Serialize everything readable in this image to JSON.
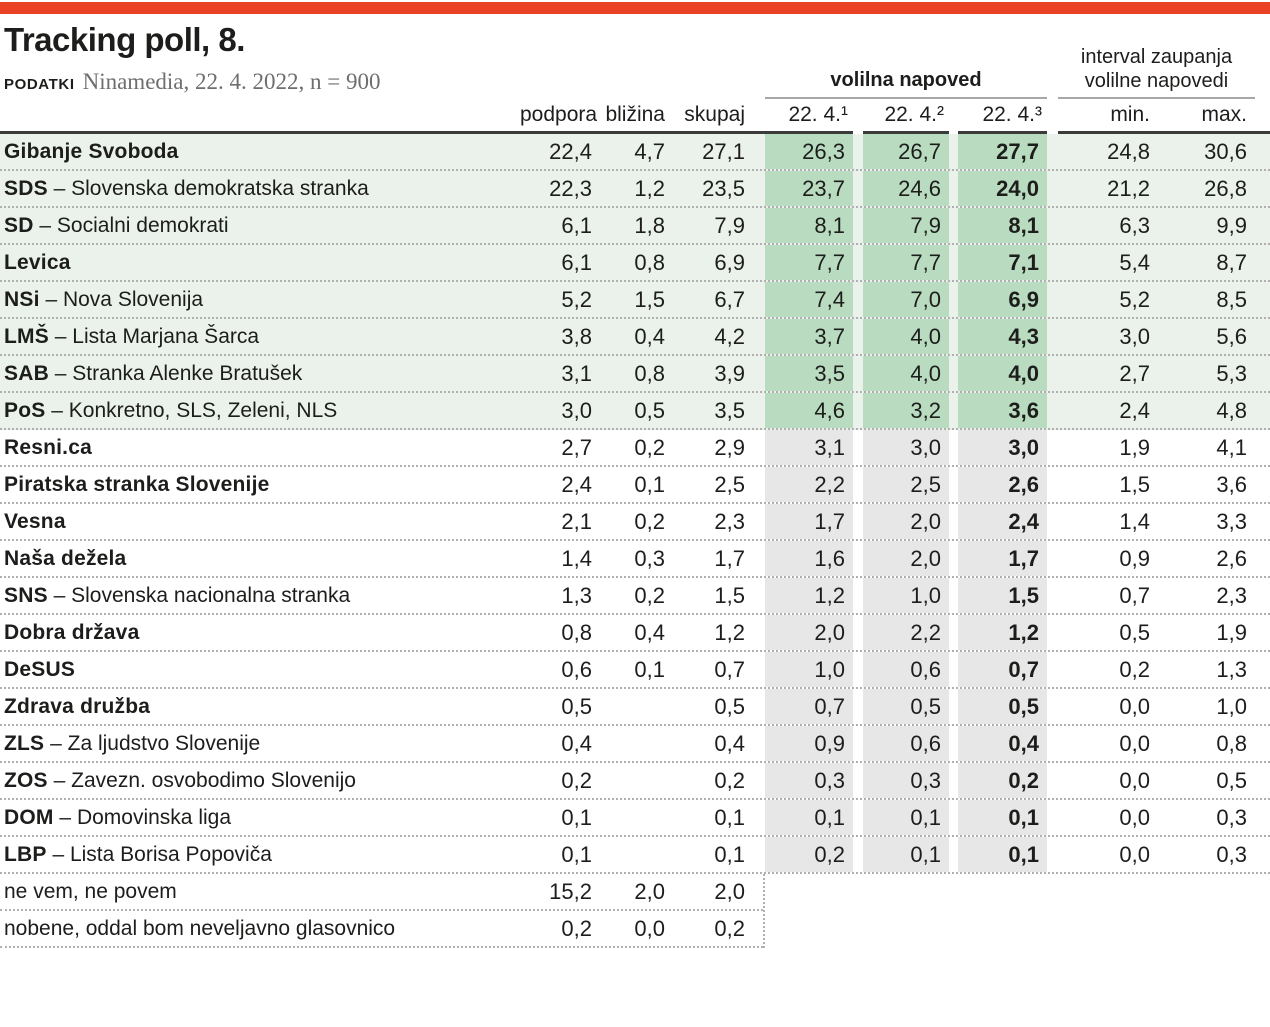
{
  "colors": {
    "accent-red": "#ea4224",
    "row-green": "#eaf2eb",
    "band-green": "#b9dcc1",
    "band-gray": "#e7e7e7"
  },
  "chart_data": {
    "type": "table",
    "title": "Tracking poll, 8.",
    "source_label": "PODATKI",
    "source_text": "Ninamedia, 22. 4. 2022, n = 900",
    "group_headers": {
      "napoved": "volilna napoved",
      "interval_line1": "interval zaupanja",
      "interval_line2": "volilne napovedi"
    },
    "columns": {
      "podpora": "podpora",
      "blizina": "bližina",
      "skupaj": "skupaj",
      "d1": "22. 4.¹",
      "d2": "22. 4.²",
      "d3": "22. 4.³",
      "min": "min.",
      "max": "max."
    },
    "rows": [
      {
        "name_bold": "Gibanje Svoboda",
        "name_rest": "",
        "podpora": "22,4",
        "blizina": "4,7",
        "skupaj": "27,1",
        "d1": "26,3",
        "d2": "26,7",
        "d3": "27,7",
        "min": "24,8",
        "max": "30,6",
        "band": "green"
      },
      {
        "name_bold": "SDS",
        "name_rest": " – Slovenska demokratska stranka",
        "podpora": "22,3",
        "blizina": "1,2",
        "skupaj": "23,5",
        "d1": "23,7",
        "d2": "24,6",
        "d3": "24,0",
        "min": "21,2",
        "max": "26,8",
        "band": "green"
      },
      {
        "name_bold": "SD",
        "name_rest": " – Socialni demokrati",
        "podpora": "6,1",
        "blizina": "1,8",
        "skupaj": "7,9",
        "d1": "8,1",
        "d2": "7,9",
        "d3": "8,1",
        "min": "6,3",
        "max": "9,9",
        "band": "green"
      },
      {
        "name_bold": "Levica",
        "name_rest": "",
        "podpora": "6,1",
        "blizina": "0,8",
        "skupaj": "6,9",
        "d1": "7,7",
        "d2": "7,7",
        "d3": "7,1",
        "min": "5,4",
        "max": "8,7",
        "band": "green"
      },
      {
        "name_bold": "NSi",
        "name_rest": " – Nova Slovenija",
        "podpora": "5,2",
        "blizina": "1,5",
        "skupaj": "6,7",
        "d1": "7,4",
        "d2": "7,0",
        "d3": "6,9",
        "min": "5,2",
        "max": "8,5",
        "band": "green"
      },
      {
        "name_bold": "LMŠ",
        "name_rest": " – Lista Marjana Šarca",
        "podpora": "3,8",
        "blizina": "0,4",
        "skupaj": "4,2",
        "d1": "3,7",
        "d2": "4,0",
        "d3": "4,3",
        "min": "3,0",
        "max": "5,6",
        "band": "green"
      },
      {
        "name_bold": "SAB",
        "name_rest": " – Stranka Alenke Bratušek",
        "podpora": "3,1",
        "blizina": "0,8",
        "skupaj": "3,9",
        "d1": "3,5",
        "d2": "4,0",
        "d3": "4,0",
        "min": "2,7",
        "max": "5,3",
        "band": "green"
      },
      {
        "name_bold": "PoS",
        "name_rest": " – Konkretno, SLS, Zeleni, NLS",
        "podpora": "3,0",
        "blizina": "0,5",
        "skupaj": "3,5",
        "d1": "4,6",
        "d2": "3,2",
        "d3": "3,6",
        "min": "2,4",
        "max": "4,8",
        "band": "green"
      },
      {
        "name_bold": "Resni.ca",
        "name_rest": "",
        "podpora": "2,7",
        "blizina": "0,2",
        "skupaj": "2,9",
        "d1": "3,1",
        "d2": "3,0",
        "d3": "3,0",
        "min": "1,9",
        "max": "4,1",
        "band": "gray"
      },
      {
        "name_bold": "Piratska stranka Slovenije",
        "name_rest": "",
        "podpora": "2,4",
        "blizina": "0,1",
        "skupaj": "2,5",
        "d1": "2,2",
        "d2": "2,5",
        "d3": "2,6",
        "min": "1,5",
        "max": "3,6",
        "band": "gray"
      },
      {
        "name_bold": "Vesna",
        "name_rest": "",
        "podpora": "2,1",
        "blizina": "0,2",
        "skupaj": "2,3",
        "d1": "1,7",
        "d2": "2,0",
        "d3": "2,4",
        "min": "1,4",
        "max": "3,3",
        "band": "gray"
      },
      {
        "name_bold": "Naša dežela",
        "name_rest": "",
        "podpora": "1,4",
        "blizina": "0,3",
        "skupaj": "1,7",
        "d1": "1,6",
        "d2": "2,0",
        "d3": "1,7",
        "min": "0,9",
        "max": "2,6",
        "band": "gray"
      },
      {
        "name_bold": "SNS",
        "name_rest": " – Slovenska nacionalna stranka",
        "podpora": "1,3",
        "blizina": "0,2",
        "skupaj": "1,5",
        "d1": "1,2",
        "d2": "1,0",
        "d3": "1,5",
        "min": "0,7",
        "max": "2,3",
        "band": "gray"
      },
      {
        "name_bold": "Dobra država",
        "name_rest": "",
        "podpora": "0,8",
        "blizina": "0,4",
        "skupaj": "1,2",
        "d1": "2,0",
        "d2": "2,2",
        "d3": "1,2",
        "min": "0,5",
        "max": "1,9",
        "band": "gray"
      },
      {
        "name_bold": "DeSUS",
        "name_rest": "",
        "podpora": "0,6",
        "blizina": "0,1",
        "skupaj": "0,7",
        "d1": "1,0",
        "d2": "0,6",
        "d3": "0,7",
        "min": "0,2",
        "max": "1,3",
        "band": "gray"
      },
      {
        "name_bold": "Zdrava družba",
        "name_rest": "",
        "podpora": "0,5",
        "blizina": "",
        "skupaj": "0,5",
        "d1": "0,7",
        "d2": "0,5",
        "d3": "0,5",
        "min": "0,0",
        "max": "1,0",
        "band": "gray"
      },
      {
        "name_bold": "ZLS",
        "name_rest": " – Za ljudstvo Slovenije",
        "podpora": "0,4",
        "blizina": "",
        "skupaj": "0,4",
        "d1": "0,9",
        "d2": "0,6",
        "d3": "0,4",
        "min": "0,0",
        "max": "0,8",
        "band": "gray"
      },
      {
        "name_bold": "ZOS",
        "name_rest": " – Zavezn. osvobodimo Slovenijo",
        "podpora": "0,2",
        "blizina": "",
        "skupaj": "0,2",
        "d1": "0,3",
        "d2": "0,3",
        "d3": "0,2",
        "min": "0,0",
        "max": "0,5",
        "band": "gray"
      },
      {
        "name_bold": "DOM",
        "name_rest": " – Domovinska liga",
        "podpora": "0,1",
        "blizina": "",
        "skupaj": "0,1",
        "d1": "0,1",
        "d2": "0,1",
        "d3": "0,1",
        "min": "0,0",
        "max": "0,3",
        "band": "gray"
      },
      {
        "name_bold": "LBP",
        "name_rest": " – Lista Borisa Popoviča",
        "podpora": "0,1",
        "blizina": "",
        "skupaj": "0,1",
        "d1": "0,2",
        "d2": "0,1",
        "d3": "0,1",
        "min": "0,0",
        "max": "0,3",
        "band": "gray"
      },
      {
        "name_bold": "",
        "name_rest": "ne vem, ne povem",
        "podpora": "15,2",
        "blizina": "2,0",
        "skupaj": "2,0",
        "d1": "",
        "d2": "",
        "d3": "",
        "min": "",
        "max": "",
        "band": "none"
      },
      {
        "name_bold": "",
        "name_rest": "nobene, oddal bom neveljavno glasovnico",
        "podpora": "0,2",
        "blizina": "0,0",
        "skupaj": "0,2",
        "d1": "",
        "d2": "",
        "d3": "",
        "min": "",
        "max": "",
        "band": "none"
      }
    ]
  }
}
